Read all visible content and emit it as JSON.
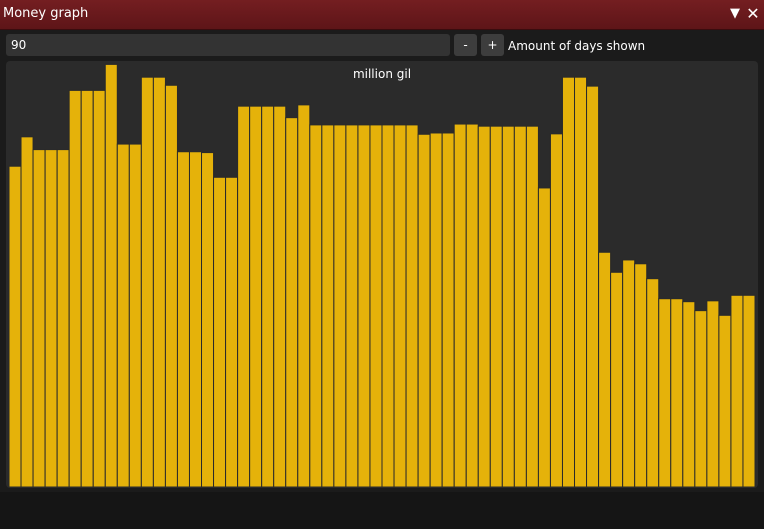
{
  "window": {
    "title": "Money graph",
    "collapse_icon": "▼",
    "close_icon": "✕"
  },
  "controls": {
    "days_value": "90",
    "minus_label": "-",
    "plus_label": "+",
    "days_label": "Amount of days shown"
  },
  "colors": {
    "bar": "#e5b20a",
    "bar_border": "#2a2a2a",
    "panel": "#2b2b2b",
    "titlebar": "#6a1a1d"
  },
  "chart_data": {
    "type": "bar",
    "title": "million gil",
    "xlabel": "",
    "ylabel": "",
    "ylim": [
      0,
      100
    ],
    "grid": false,
    "values": [
      75.3,
      82.2,
      79.2,
      79.2,
      79.2,
      93.1,
      93.1,
      93.1,
      99.2,
      80.5,
      80.5,
      96.2,
      96.2,
      94.3,
      78.7,
      78.7,
      78.5,
      72.7,
      72.7,
      89.4,
      89.4,
      89.4,
      89.4,
      86.7,
      89.7,
      85.0,
      85.0,
      85.0,
      85.0,
      85.0,
      85.0,
      85.0,
      85.0,
      85.0,
      82.8,
      83.1,
      83.1,
      85.2,
      85.2,
      84.7,
      84.7,
      84.7,
      84.7,
      84.7,
      70.2,
      82.9,
      96.2,
      96.2,
      94.1,
      55.1,
      50.4,
      53.3,
      52.4,
      48.9,
      44.2,
      44.2,
      43.5,
      41.4,
      43.7,
      40.3,
      45.0,
      45.0
    ]
  }
}
